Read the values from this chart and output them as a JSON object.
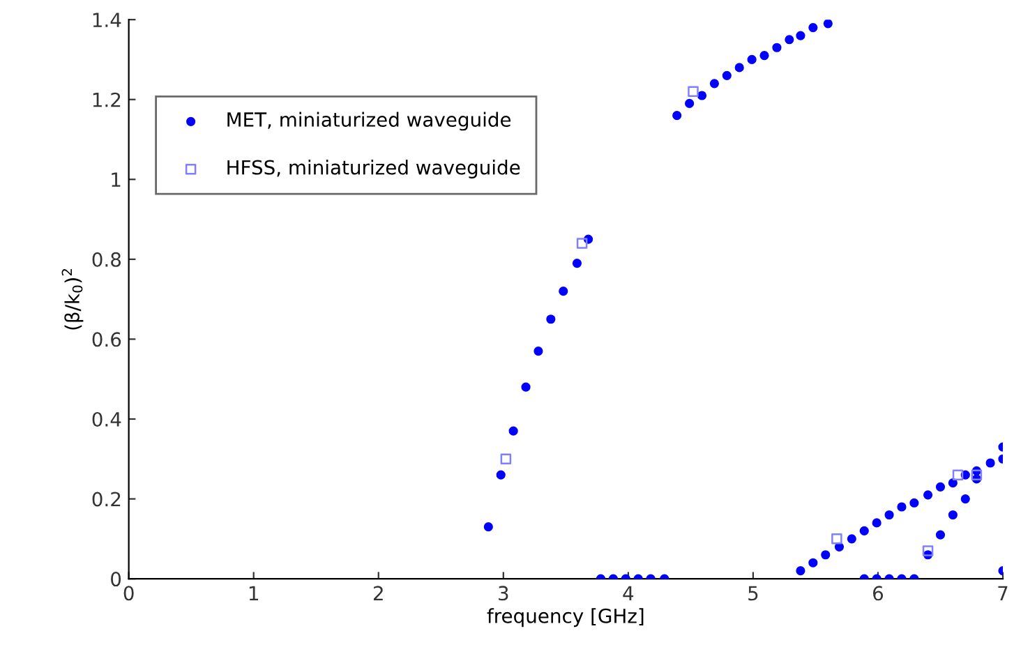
{
  "chart_data": {
    "type": "scatter",
    "xlabel": "frequency [GHz]",
    "ylabel": "(β/k$_{0}$)$^{2}$",
    "xlim": [
      0,
      7
    ],
    "ylim": [
      0,
      1.4
    ],
    "xticks": [
      0,
      1,
      2,
      3,
      4,
      5,
      6,
      7
    ],
    "yticks": [
      0,
      0.2,
      0.4,
      0.6,
      0.8,
      1,
      1.2,
      1.4
    ],
    "grid": false,
    "legend": "top left",
    "series": [
      {
        "name": "MET, miniaturized waveguide",
        "color": "#0000ff",
        "marker": "circle",
        "x": [
          2.88,
          2.98,
          3.08,
          3.18,
          3.28,
          3.38,
          3.48,
          3.59,
          3.68,
          4.39,
          4.49,
          4.59,
          4.69,
          4.79,
          4.89,
          4.99,
          5.09,
          5.19,
          5.29,
          5.38,
          5.48,
          5.6,
          3.78,
          3.88,
          3.98,
          4.08,
          4.18,
          4.29,
          5.89,
          5.99,
          6.09,
          6.19,
          6.29,
          6.4,
          6.5,
          6.6,
          6.7,
          6.79,
          6.9,
          7.0,
          5.38,
          5.48,
          5.58,
          5.69,
          5.79,
          5.89,
          5.99,
          6.09,
          6.19,
          6.29,
          6.4,
          6.5,
          6.6,
          6.7,
          6.79,
          6.9,
          7.0,
          7.0
        ],
        "values": [
          0.13,
          0.26,
          0.37,
          0.48,
          0.57,
          0.65,
          0.72,
          0.79,
          0.85,
          1.16,
          1.19,
          1.21,
          1.24,
          1.26,
          1.28,
          1.3,
          1.31,
          1.33,
          1.35,
          1.36,
          1.38,
          1.39,
          0,
          0,
          0,
          0,
          0,
          0,
          0,
          0,
          0,
          0,
          0,
          0.06,
          0.11,
          0.16,
          0.2,
          0.25,
          0.29,
          0.33,
          0.02,
          0.04,
          0.06,
          0.08,
          0.1,
          0.12,
          0.14,
          0.16,
          0.18,
          0.19,
          0.21,
          0.23,
          0.24,
          0.26,
          0.27,
          null,
          0.3,
          0.02
        ]
      },
      {
        "name": "HFSS, miniaturized waveguide",
        "color": "#8080ff",
        "marker": "square",
        "x": [
          3.02,
          3.63,
          4.52,
          5.67,
          6.4,
          6.64,
          6.79
        ],
        "values": [
          0.3,
          0.84,
          1.22,
          0.1,
          0.07,
          0.26,
          0.26
        ]
      }
    ]
  }
}
